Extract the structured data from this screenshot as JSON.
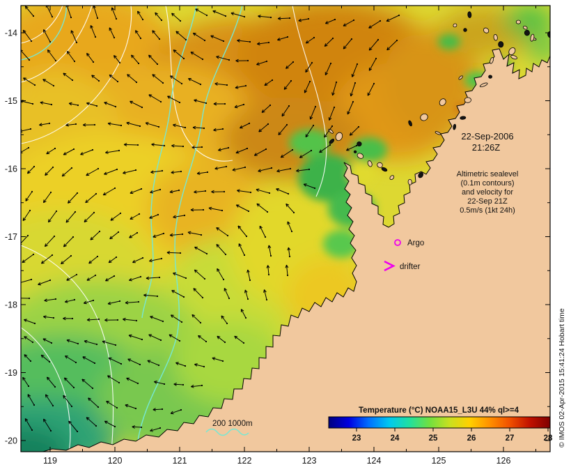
{
  "figure": {
    "datetime": [
      "22-Sep-2006",
      "21:26Z"
    ],
    "alt_note": [
      "Altimetric sealevel",
      "(0.1m contours)",
      "and velocity for",
      "22-Sep 21Z",
      "0.5m/s (1kt 24h)"
    ],
    "argo_label": "Argo",
    "drifter_label": "drifter",
    "depth_legend": "200 1000m",
    "copyright": "© IMOS 02-Apr-2015 15:41:24 Hobart time"
  },
  "axes": {
    "lon": [
      "119",
      "120",
      "121",
      "122",
      "123",
      "124",
      "125",
      "126"
    ],
    "lat": [
      "-14",
      "-15",
      "-16",
      "-17",
      "-18",
      "-19",
      "-20"
    ]
  },
  "colorbar": {
    "title": "Temperature (°C) NOAA15_L3U 44% ql>=4",
    "ticks": [
      "23",
      "24",
      "25",
      "26",
      "27",
      "28"
    ],
    "stops": [
      "#00007f",
      "#0000e0",
      "#0070ff",
      "#00c8f0",
      "#20e0a0",
      "#70e040",
      "#c8e020",
      "#ffd000",
      "#ff9000",
      "#f05000",
      "#c01000",
      "#7f0000"
    ]
  },
  "colors": {
    "land": "#f1c89e",
    "bathy_contour": "#76e8d4",
    "sealevel_contour": "#ffffff",
    "marker_magenta": "#ee00ee",
    "label_navy": "#00008b",
    "vector": "#000000"
  },
  "chart_data": {
    "type": "heatmap",
    "title": "Sea surface temperature (NOAA15_L3U) with altimetric sealevel contours and velocity vectors",
    "x_axis_deg_east": [
      119,
      120,
      121,
      122,
      123,
      124,
      125,
      126
    ],
    "y_axis_deg_north": [
      -14,
      -15,
      -16,
      -17,
      -18,
      -19,
      -20
    ],
    "temperature_scale_c": [
      23,
      28
    ],
    "datetime_utc": "22-Sep-2006 21:26Z",
    "legend_position": "bottom-right",
    "notes": "warm (orange ~27-28C) water north and offshore, cooler (green-teal ~23-24C) water in the south-west; land mass of NW Australia on the east/south-east"
  }
}
